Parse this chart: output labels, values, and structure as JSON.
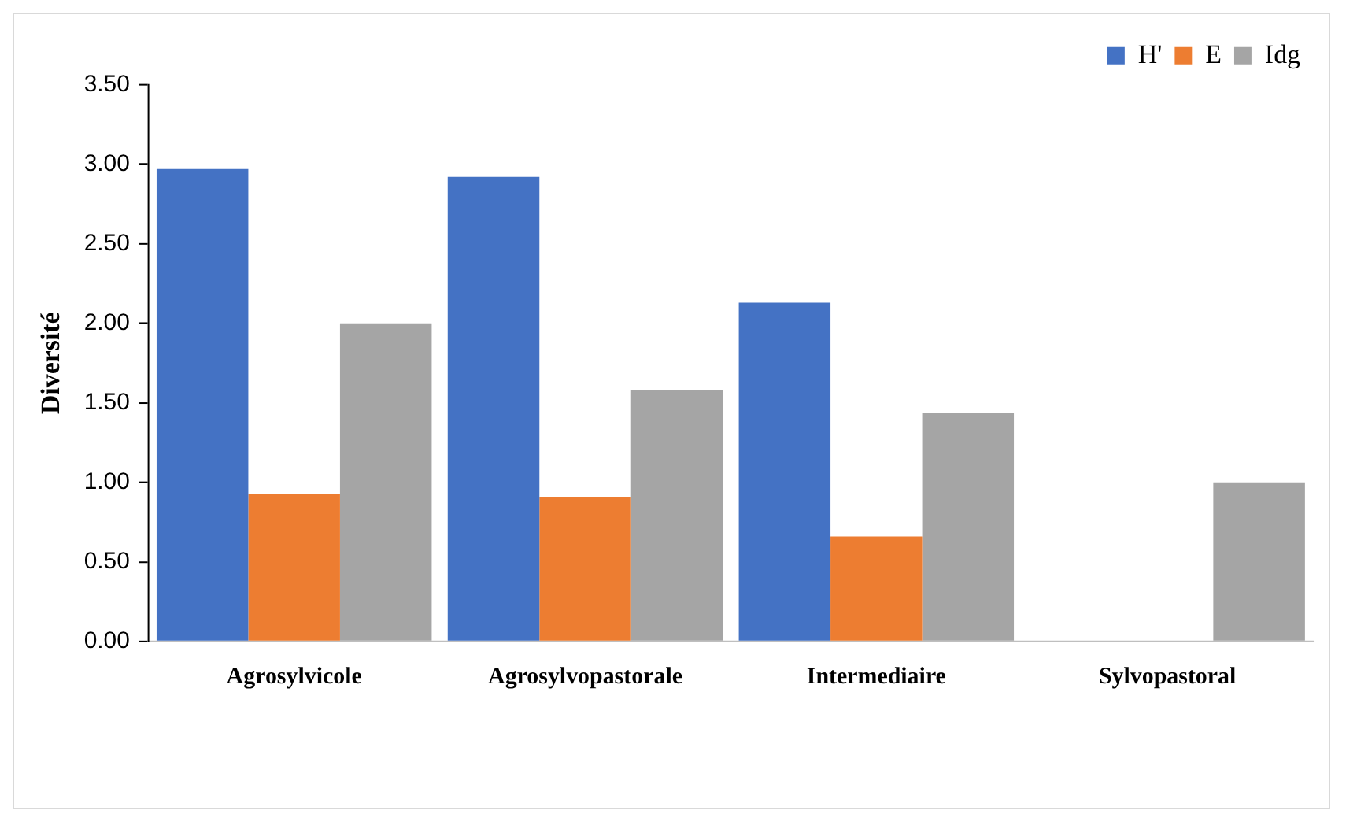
{
  "chart_data": {
    "type": "bar",
    "ylabel": "Diversité",
    "categories": [
      "Agrosylvicole",
      "Agrosylvopastorale",
      "Intermediaire",
      "Sylvopastoral"
    ],
    "series": [
      {
        "name": "H'",
        "color": "#4472c4",
        "values": [
          2.97,
          2.92,
          2.13,
          0
        ]
      },
      {
        "name": "E",
        "color": "#ed7d31",
        "values": [
          0.93,
          0.91,
          0.66,
          0
        ]
      },
      {
        "name": "Idg",
        "color": "#a5a5a5",
        "values": [
          2.0,
          1.58,
          1.44,
          1.0
        ]
      }
    ],
    "ylim": [
      0,
      3.5
    ],
    "yticks": [
      {
        "value": 0,
        "label": "0.00"
      },
      {
        "value": 0.5,
        "label": "0.50"
      },
      {
        "value": 1,
        "label": "1.00"
      },
      {
        "value": 1.5,
        "label": "1.50"
      },
      {
        "value": 2,
        "label": "2.00"
      },
      {
        "value": 2.5,
        "label": "2.50"
      },
      {
        "value": 3,
        "label": "3.00"
      },
      {
        "value": 3.5,
        "label": "3.50"
      }
    ],
    "grid": false,
    "legend": "top right"
  }
}
